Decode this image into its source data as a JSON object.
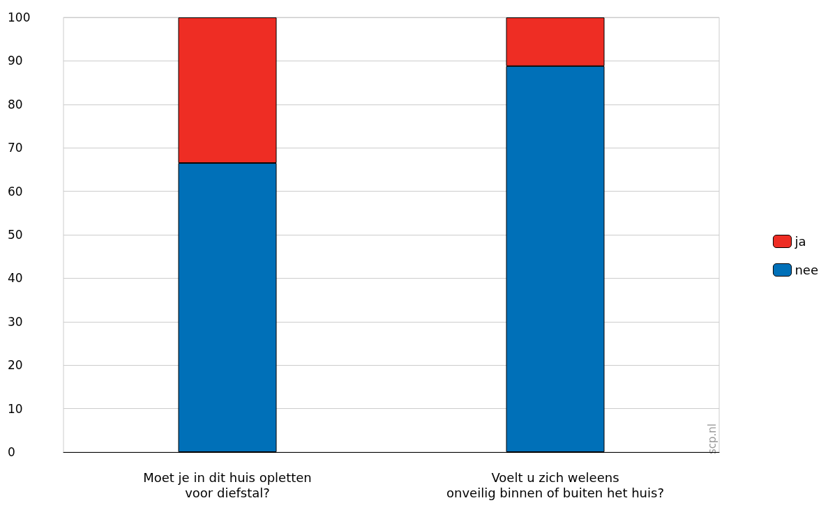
{
  "chart_data": {
    "type": "bar",
    "stacked": true,
    "categories": [
      "Moet je in dit huis opletten\nvoor diefstal?",
      "Voelt u zich weleens\nonveilig binnen of buiten het huis?"
    ],
    "series": [
      {
        "name": "nee",
        "color": "#0070b8",
        "values": [
          66.5,
          88.8
        ]
      },
      {
        "name": "ja",
        "color": "#ee2d24",
        "values": [
          33.5,
          11.2
        ]
      }
    ],
    "ylim": [
      0,
      100
    ],
    "yticks": [
      0,
      10,
      20,
      30,
      40,
      50,
      60,
      70,
      80,
      90,
      100
    ],
    "grid": "y",
    "legend": "right",
    "annotations": [
      "scp.nl"
    ]
  }
}
